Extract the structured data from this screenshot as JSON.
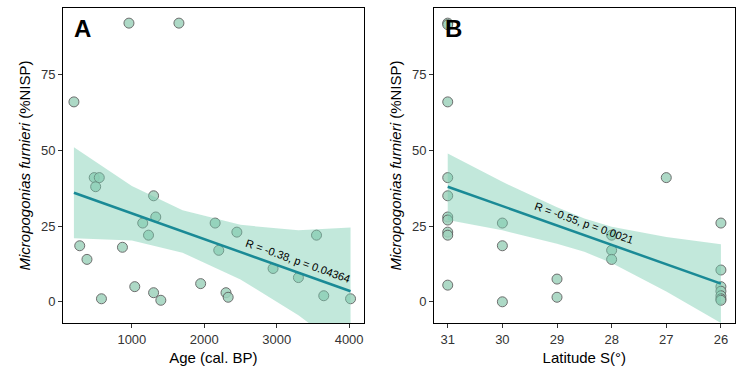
{
  "chart_data": [
    {
      "type": "scatter",
      "panel": "A",
      "x_label": "Age (cal. BP)",
      "y_label": "Micropogonias furnieri (%NISP)",
      "xlim": [
        50,
        4200
      ],
      "xticks": [
        1000,
        2000,
        3000,
        4000
      ],
      "ylim": [
        -7,
        97
      ],
      "yticks": [
        0,
        25,
        50,
        75
      ],
      "grid": false,
      "annotation": "R = -0.38, p = 0.04364",
      "series": [
        {
          "type": "scatter",
          "marker": "circle",
          "color": "#9fd3bd",
          "x": [
            200,
            280,
            380,
            480,
            500,
            550,
            580,
            870,
            960,
            1040,
            1150,
            1230,
            1300,
            1300,
            1330,
            1400,
            1650,
            1950,
            2150,
            2200,
            2300,
            2330,
            2450,
            2950,
            3300,
            3550,
            3650,
            4020
          ],
          "values": [
            66,
            18.5,
            14,
            41,
            38,
            41,
            1,
            18,
            92,
            5,
            26,
            22,
            35,
            3,
            28,
            0.5,
            92,
            6,
            26,
            17,
            3,
            1.5,
            23,
            11,
            8,
            22,
            2,
            1
          ]
        },
        {
          "type": "line",
          "color": "#1a8a96",
          "x": [
            200,
            1000,
            1700,
            2500,
            3300,
            4020
          ],
          "values": [
            36,
            29.2,
            23.2,
            16.4,
            9.6,
            3.5
          ],
          "lower": [
            21,
            20.2,
            16.2,
            7.4,
            -4.4,
            -17.5
          ],
          "upper": [
            51,
            38.2,
            30.2,
            25.4,
            23.6,
            24.5
          ]
        }
      ]
    },
    {
      "type": "scatter",
      "panel": "B",
      "x_label": "Latitude S(°)",
      "y_label": "Micropogonias furnieri (%NISP)",
      "xlim": [
        31.25,
        25.75
      ],
      "xticks": [
        31,
        30,
        29,
        28,
        27,
        26
      ],
      "ylim": [
        -7,
        97
      ],
      "yticks": [
        0,
        25,
        50,
        75
      ],
      "grid": false,
      "annotation": "R = -0.55, p = 0.0021",
      "series": [
        {
          "type": "scatter",
          "marker": "circle",
          "color": "#9fd3bd",
          "x": [
            31,
            31,
            31,
            31,
            31,
            31,
            31,
            31,
            31,
            31,
            30,
            30,
            30,
            29,
            29,
            28,
            28,
            28,
            27,
            26,
            26,
            26,
            26,
            26,
            26,
            26
          ],
          "values": [
            92,
            91.5,
            66,
            41,
            35,
            28,
            27,
            23,
            22,
            5.5,
            26,
            18.5,
            0,
            7.5,
            1.5,
            22,
            17,
            14,
            41,
            26,
            10.5,
            5,
            3.5,
            2,
            1,
            0.5
          ]
        },
        {
          "type": "line",
          "color": "#1a8a96",
          "x": [
            31,
            30,
            29,
            28.5,
            28,
            27,
            26
          ],
          "values": [
            38,
            31.6,
            25.2,
            22,
            18.8,
            12.4,
            6
          ],
          "lower": [
            27,
            23.6,
            19.2,
            16.5,
            12.8,
            3.4,
            -7
          ],
          "upper": [
            49,
            39.6,
            31.2,
            27.5,
            24.8,
            21.4,
            19
          ]
        }
      ]
    }
  ]
}
